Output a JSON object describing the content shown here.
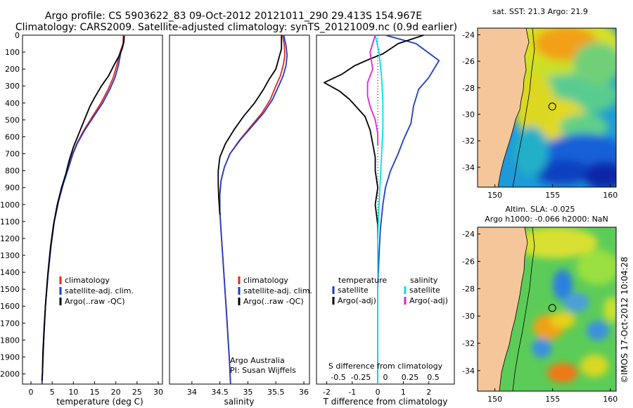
{
  "header": {
    "line1": "Argo profile: CS 5903622_83 09-Oct-2012 20121011_290 29.413S 154.967E",
    "line2": "Climatology: CARS2009. Satellite-adjusted climatology: synTS_20121009.nc (0.9d earlier)"
  },
  "side_stamp": "©IMOS 17-Oct-2012 10:04:28",
  "chart_data": [
    {
      "id": "temperature",
      "type": "line",
      "xlabel": "temperature (deg C)",
      "xlim": [
        -2,
        31
      ],
      "xticks": [
        0,
        5,
        10,
        15,
        20,
        25,
        30
      ],
      "ylim": [
        2060,
        0
      ],
      "yticks": [
        0,
        100,
        200,
        300,
        400,
        500,
        600,
        700,
        800,
        900,
        1000,
        1100,
        1200,
        1300,
        1400,
        1500,
        1600,
        1700,
        1800,
        1900,
        2000
      ],
      "legend": [
        "climatology",
        "satellite-adj. clim.",
        "Argo(..raw -QC)"
      ],
      "series": [
        {
          "name": "climatology",
          "color": "#e8241c",
          "points": [
            [
              21.8,
              0
            ],
            [
              21.7,
              50
            ],
            [
              21.0,
              100
            ],
            [
              20.2,
              180
            ],
            [
              19.4,
              250
            ],
            [
              18.2,
              320
            ],
            [
              16.5,
              400
            ],
            [
              14.5,
              480
            ],
            [
              12.5,
              560
            ],
            [
              10.8,
              640
            ],
            [
              9.8,
              700
            ],
            [
              8.8,
              780
            ],
            [
              7.5,
              880
            ],
            [
              6.5,
              980
            ],
            [
              5.5,
              1100
            ],
            [
              4.7,
              1250
            ],
            [
              4.0,
              1420
            ],
            [
              3.4,
              1600
            ],
            [
              3.0,
              1800
            ],
            [
              2.7,
              2000
            ],
            [
              2.6,
              2060
            ]
          ]
        },
        {
          "name": "satellite-adj. clim.",
          "color": "#1e3cc8",
          "points": [
            [
              21.9,
              0
            ],
            [
              21.8,
              50
            ],
            [
              21.2,
              100
            ],
            [
              20.6,
              180
            ],
            [
              19.8,
              250
            ],
            [
              18.6,
              320
            ],
            [
              16.9,
              400
            ],
            [
              14.8,
              480
            ],
            [
              12.7,
              560
            ],
            [
              10.9,
              640
            ],
            [
              9.9,
              700
            ],
            [
              8.9,
              780
            ],
            [
              7.6,
              880
            ],
            [
              6.5,
              980
            ],
            [
              5.5,
              1100
            ],
            [
              4.7,
              1250
            ],
            [
              4.0,
              1420
            ],
            [
              3.4,
              1600
            ],
            [
              3.0,
              1800
            ],
            [
              2.7,
              2000
            ],
            [
              2.6,
              2060
            ]
          ]
        },
        {
          "name": "Argo(..raw -QC)",
          "color": "#000000",
          "points": [
            [
              22.0,
              5
            ],
            [
              21.9,
              40
            ],
            [
              21.5,
              80
            ],
            [
              20.8,
              120
            ],
            [
              19.5,
              180
            ],
            [
              18.3,
              240
            ],
            [
              16.6,
              300
            ],
            [
              15.2,
              360
            ],
            [
              13.9,
              420
            ],
            [
              12.6,
              500
            ],
            [
              11.3,
              580
            ],
            [
              10.0,
              660
            ],
            [
              9.0,
              740
            ],
            [
              8.2,
              820
            ],
            [
              7.2,
              900
            ],
            [
              6.2,
              1000
            ],
            [
              5.3,
              1120
            ],
            [
              4.6,
              1250
            ],
            [
              4.0,
              1400
            ],
            [
              3.5,
              1560
            ],
            [
              3.1,
              1720
            ],
            [
              2.8,
              1880
            ],
            [
              2.7,
              2000
            ],
            [
              2.6,
              2040
            ]
          ]
        }
      ]
    },
    {
      "id": "salinity",
      "type": "line",
      "xlabel": "salinity",
      "xlim": [
        33.6,
        36.1
      ],
      "xticks": [
        34,
        34.5,
        35,
        35.5,
        36
      ],
      "ylim": [
        2060,
        0
      ],
      "legend": [
        "climatology",
        "satellite-adj. clim.",
        "Argo(..raw -QC)"
      ],
      "annotation": [
        "Argo Australia",
        "PI: Susan Wijffels"
      ],
      "series": [
        {
          "name": "climatology",
          "color": "#e8241c",
          "points": [
            [
              35.62,
              0
            ],
            [
              35.65,
              60
            ],
            [
              35.66,
              120
            ],
            [
              35.63,
              180
            ],
            [
              35.58,
              240
            ],
            [
              35.5,
              300
            ],
            [
              35.4,
              380
            ],
            [
              35.25,
              460
            ],
            [
              35.05,
              540
            ],
            [
              34.85,
              620
            ],
            [
              34.68,
              700
            ],
            [
              34.58,
              780
            ],
            [
              34.52,
              860
            ],
            [
              34.5,
              940
            ],
            [
              34.5,
              1040
            ],
            [
              34.52,
              1150
            ],
            [
              34.55,
              1300
            ],
            [
              34.58,
              1450
            ],
            [
              34.61,
              1600
            ],
            [
              34.64,
              1760
            ],
            [
              34.67,
              1920
            ],
            [
              34.69,
              2060
            ]
          ]
        },
        {
          "name": "satellite-adj. clim.",
          "color": "#1e3cc8",
          "points": [
            [
              35.64,
              0
            ],
            [
              35.68,
              60
            ],
            [
              35.7,
              120
            ],
            [
              35.68,
              180
            ],
            [
              35.63,
              240
            ],
            [
              35.55,
              300
            ],
            [
              35.44,
              380
            ],
            [
              35.28,
              460
            ],
            [
              35.07,
              540
            ],
            [
              34.86,
              620
            ],
            [
              34.68,
              700
            ],
            [
              34.58,
              780
            ],
            [
              34.52,
              860
            ],
            [
              34.5,
              940
            ],
            [
              34.5,
              1040
            ],
            [
              34.52,
              1150
            ],
            [
              34.55,
              1300
            ],
            [
              34.58,
              1450
            ],
            [
              34.61,
              1600
            ],
            [
              34.64,
              1760
            ],
            [
              34.67,
              1920
            ],
            [
              34.69,
              2060
            ]
          ]
        },
        {
          "name": "Argo(..raw -QC)",
          "color": "#000000",
          "points": [
            [
              35.6,
              0
            ],
            [
              35.6,
              40
            ],
            [
              35.6,
              80
            ],
            [
              35.55,
              140
            ],
            [
              35.5,
              200
            ],
            [
              35.38,
              260
            ],
            [
              35.28,
              320
            ],
            [
              35.12,
              400
            ],
            [
              34.92,
              480
            ],
            [
              34.75,
              560
            ],
            [
              34.6,
              640
            ],
            [
              34.5,
              720
            ],
            [
              34.47,
              800
            ],
            [
              34.47,
              880
            ],
            [
              34.48,
              960
            ],
            [
              34.5,
              1060
            ]
          ]
        }
      ]
    },
    {
      "id": "difference",
      "type": "line",
      "xlabel": "T difference from climatology",
      "xlabel_top": "S difference from climatology",
      "xlim": [
        -2.4,
        3.0
      ],
      "xticks": [
        -2,
        -1,
        0,
        1,
        2
      ],
      "s_ticks": [
        "-0.5",
        "-0.25",
        "0",
        "0.25",
        "0.5"
      ],
      "ylim": [
        2060,
        0
      ],
      "legend_headers": [
        "temperature",
        "salinity"
      ],
      "legend": [
        "satellite",
        "Argo(-adj)",
        "satellite",
        "Argo(-adj)"
      ],
      "series": [
        {
          "name": "satellite",
          "group": "temperature",
          "color": "#1e3cc8",
          "points": [
            [
              0.3,
              0
            ],
            [
              1.5,
              50
            ],
            [
              2.4,
              150
            ],
            [
              2.0,
              250
            ],
            [
              1.6,
              320
            ],
            [
              1.4,
              420
            ],
            [
              1.3,
              520
            ],
            [
              1.0,
              620
            ],
            [
              0.8,
              700
            ],
            [
              0.5,
              800
            ],
            [
              0.3,
              900
            ],
            [
              0.2,
              1000
            ],
            [
              0.1,
              1150
            ],
            [
              0.05,
              1300
            ],
            [
              0.0,
              1500
            ],
            [
              0.0,
              2060
            ]
          ]
        },
        {
          "name": "Argo(-adj)",
          "group": "temperature",
          "color": "#000000",
          "points": [
            [
              1.8,
              0
            ],
            [
              0.8,
              50
            ],
            [
              0.4,
              90
            ],
            [
              0.2,
              110
            ],
            [
              -0.3,
              140
            ],
            [
              -0.9,
              180
            ],
            [
              -1.4,
              230
            ],
            [
              -2.1,
              280
            ],
            [
              -1.5,
              330
            ],
            [
              -1.1,
              380
            ],
            [
              -0.8,
              430
            ],
            [
              -0.5,
              480
            ],
            [
              -0.3,
              560
            ],
            [
              -0.2,
              640
            ],
            [
              -0.1,
              720
            ],
            [
              -0.1,
              800
            ],
            [
              0.0,
              900
            ],
            [
              -0.1,
              1000
            ],
            [
              0.0,
              1120
            ],
            [
              0.0,
              1200
            ]
          ]
        },
        {
          "name": "satellite",
          "group": "salinity",
          "color": "#00e0e8",
          "points": [
            [
              -0.1,
              0
            ],
            [
              0.05,
              100
            ],
            [
              0.15,
              250
            ],
            [
              0.2,
              400
            ],
            [
              0.2,
              550
            ],
            [
              0.15,
              700
            ],
            [
              0.1,
              850
            ],
            [
              0.05,
              1000
            ],
            [
              0.0,
              1200
            ],
            [
              0.0,
              1500
            ],
            [
              0.0,
              2060
            ]
          ]
        },
        {
          "name": "Argo(-adj)",
          "group": "salinity",
          "color": "#e020e0",
          "points": [
            [
              -0.1,
              0
            ],
            [
              -0.3,
              100
            ],
            [
              -0.2,
              200
            ],
            [
              -0.4,
              280
            ],
            [
              -0.4,
              360
            ],
            [
              -0.3,
              420
            ],
            [
              -0.1,
              500
            ],
            [
              0.0,
              580
            ],
            [
              0.0,
              650
            ]
          ]
        }
      ]
    },
    {
      "id": "sst_map",
      "type": "heatmap",
      "title": "sat. SST: 21.3 Argo: 21.9",
      "xlim": [
        148.5,
        160.5
      ],
      "ylim": [
        -35.5,
        -23.5
      ],
      "xticks": [
        150,
        155,
        160
      ],
      "yticks": [
        -24,
        -26,
        -28,
        -30,
        -32,
        -34
      ],
      "marker": {
        "lon": 154.967,
        "lat": -29.413
      }
    },
    {
      "id": "sla_map",
      "type": "heatmap",
      "title_line1": "Altim. SLA: -0.025",
      "title_line2": "Argo h1000: -0.066 h2000: NaN",
      "xlim": [
        148.5,
        160.5
      ],
      "ylim": [
        -35.5,
        -23.5
      ],
      "xticks": [
        150,
        155,
        160
      ],
      "yticks": [
        -24,
        -26,
        -28,
        -30,
        -32,
        -34
      ],
      "marker": {
        "lon": 154.967,
        "lat": -29.413
      }
    }
  ]
}
